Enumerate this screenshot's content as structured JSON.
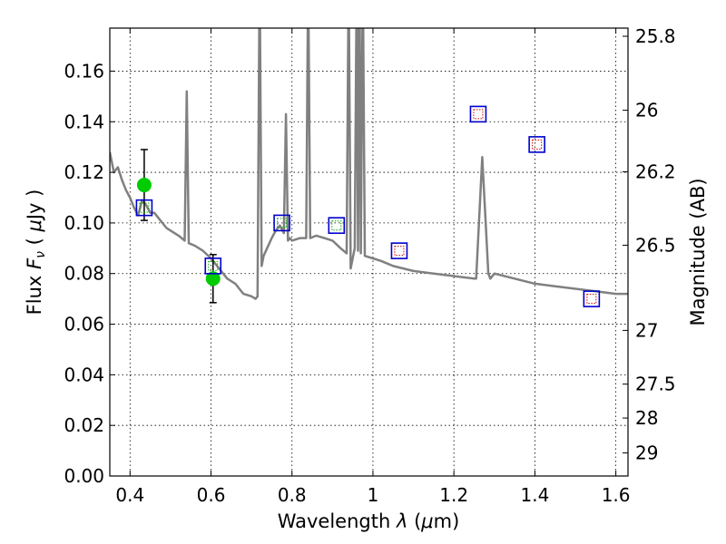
{
  "chart_data": {
    "type": "scatter",
    "xlabel": "Wavelength  λ (μm)",
    "ylabel": "Flux  F_ν  ( μJy )",
    "y2label": "Magnitude (AB)",
    "xlim": [
      0.35,
      1.63
    ],
    "ylim": [
      0.0,
      0.177
    ],
    "grid": true,
    "x_ticks": [
      0.4,
      0.6,
      0.8,
      1.0,
      1.2,
      1.4,
      1.6
    ],
    "x_tick_labels": [
      "0.4",
      "0.6",
      "0.8",
      "1",
      "1.2",
      "1.4",
      "1.6"
    ],
    "y_ticks": [
      0.0,
      0.02,
      0.04,
      0.06,
      0.08,
      0.1,
      0.12,
      0.14,
      0.16
    ],
    "y_tick_labels": [
      "0.00",
      "0.02",
      "0.04",
      "0.06",
      "0.08",
      "0.10",
      "0.12",
      "0.14",
      "0.16"
    ],
    "y2_ticks": [
      25.8,
      26,
      26.2,
      26.5,
      27,
      27.5,
      28,
      29
    ],
    "y2_tick_labels": [
      "25.8",
      "26",
      "26.2",
      "26.5",
      "27",
      "27.5",
      "28",
      "29"
    ],
    "colors": {
      "model": "#808080",
      "observed": "#00cc00",
      "model_box": "#0000cc",
      "inner_green": "#00aa00",
      "inner_red": "#cc0000",
      "errorbar": "#000000"
    },
    "series": [
      {
        "kind": "line",
        "x": [
          0.35,
          0.36,
          0.37,
          0.38,
          0.39,
          0.4,
          0.41,
          0.42,
          0.43,
          0.44,
          0.45,
          0.46,
          0.47,
          0.48,
          0.49,
          0.5,
          0.52,
          0.535,
          0.54,
          0.545,
          0.56,
          0.58,
          0.6,
          0.62,
          0.64,
          0.66,
          0.68,
          0.7,
          0.71,
          0.715,
          0.72,
          0.725,
          0.73,
          0.75,
          0.76,
          0.77,
          0.78,
          0.785,
          0.79,
          0.795,
          0.8,
          0.82,
          0.835,
          0.84,
          0.845,
          0.86,
          0.88,
          0.9,
          0.92,
          0.935,
          0.94,
          0.945,
          0.955,
          0.96,
          0.963,
          0.967,
          0.97,
          0.975,
          0.98,
          1.0,
          1.02,
          1.05,
          1.1,
          1.15,
          1.2,
          1.25,
          1.255,
          1.27,
          1.285,
          1.29,
          1.3,
          1.35,
          1.4,
          1.45,
          1.5,
          1.55,
          1.6,
          1.63
        ],
        "y": [
          0.128,
          0.12,
          0.122,
          0.117,
          0.113,
          0.11,
          0.106,
          0.103,
          0.109,
          0.107,
          0.104,
          0.104,
          0.102,
          0.1,
          0.098,
          0.097,
          0.095,
          0.093,
          0.152,
          0.092,
          0.091,
          0.089,
          0.086,
          0.082,
          0.078,
          0.076,
          0.072,
          0.071,
          0.07,
          0.071,
          0.2,
          0.083,
          0.087,
          0.094,
          0.097,
          0.099,
          0.096,
          0.143,
          0.093,
          0.094,
          0.093,
          0.094,
          0.094,
          0.2,
          0.094,
          0.095,
          0.094,
          0.093,
          0.09,
          0.088,
          0.2,
          0.082,
          0.09,
          0.2,
          0.089,
          0.2,
          0.088,
          0.2,
          0.087,
          0.086,
          0.085,
          0.083,
          0.081,
          0.08,
          0.079,
          0.078,
          0.078,
          0.126,
          0.08,
          0.078,
          0.08,
          0.078,
          0.076,
          0.075,
          0.074,
          0.073,
          0.072,
          0.072
        ]
      },
      {
        "kind": "observed",
        "x": [
          0.435,
          0.605
        ],
        "y": [
          0.115,
          0.078
        ],
        "err": [
          0.014,
          0.0095
        ]
      },
      {
        "kind": "model-box-green",
        "x": [
          0.435,
          0.605,
          0.775,
          0.91
        ],
        "y": [
          0.106,
          0.083,
          0.1,
          0.099
        ]
      },
      {
        "kind": "model-box-red",
        "x": [
          1.065,
          1.26,
          1.405,
          1.54
        ],
        "y": [
          0.089,
          0.143,
          0.131,
          0.07
        ]
      }
    ]
  }
}
